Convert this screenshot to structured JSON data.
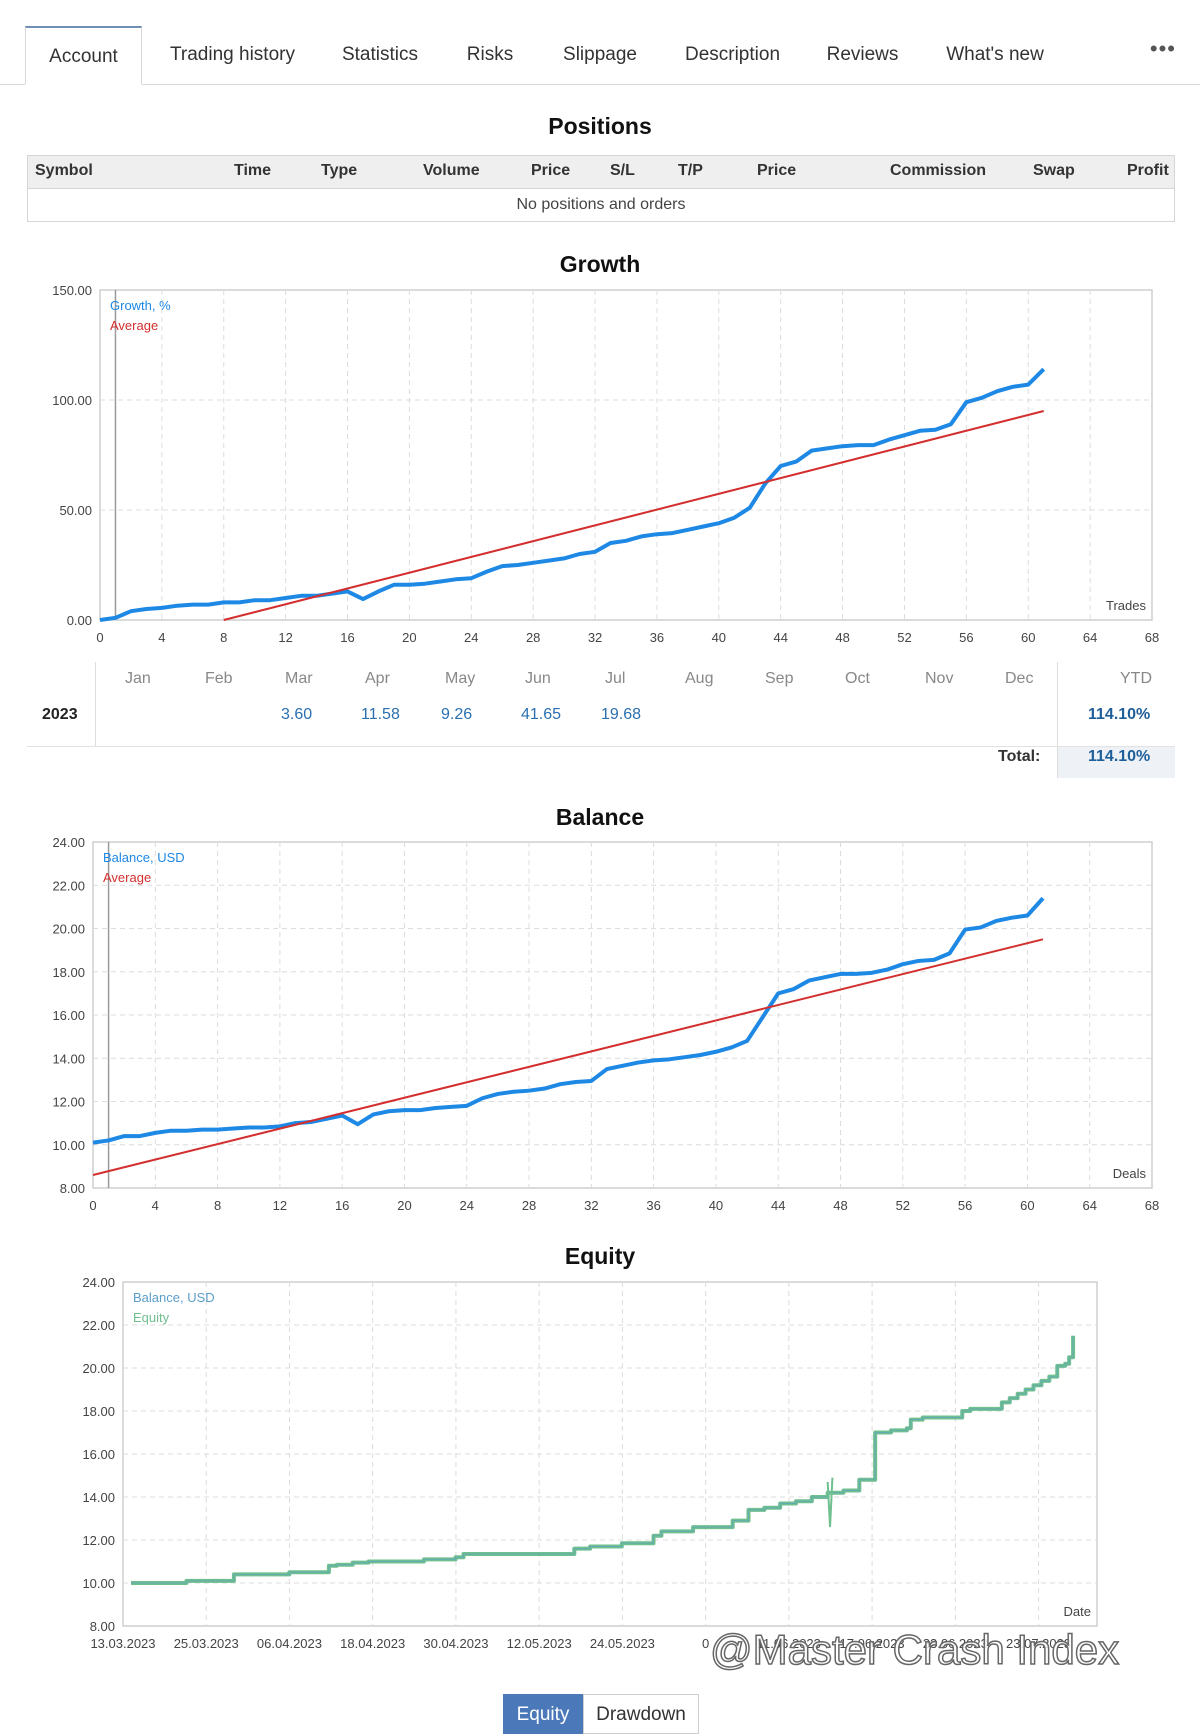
{
  "tabs": [
    "Account",
    "Trading history",
    "Statistics",
    "Risks",
    "Slippage",
    "Description",
    "Reviews",
    "What's new"
  ],
  "more_label": "•••",
  "positions": {
    "title": "Positions",
    "columns": [
      "Symbol",
      "Time",
      "Type",
      "Volume",
      "Price",
      "S/L",
      "T/P",
      "Price",
      "Commission",
      "Swap",
      "Profit"
    ],
    "empty_text": "No positions and orders"
  },
  "growth_table": {
    "months": [
      "Jan",
      "Feb",
      "Mar",
      "Apr",
      "May",
      "Jun",
      "Jul",
      "Aug",
      "Sep",
      "Oct",
      "Nov",
      "Dec"
    ],
    "ytd_label": "YTD",
    "year": "2023",
    "values": [
      "",
      "",
      "3.60",
      "11.58",
      "9.26",
      "41.65",
      "19.68",
      "",
      "",
      "",
      "",
      ""
    ],
    "ytd": "114.10%",
    "total_label": "Total:",
    "total": "114.10%"
  },
  "colors": {
    "growth": "#1e88e5",
    "average": "#d32f2f",
    "equity": "#6fbf8f",
    "balance_eq": "#5b9ec9",
    "accent": "#4a78b8"
  },
  "chart_data": [
    {
      "type": "line",
      "title": "Growth",
      "xlabel": "Trades",
      "ylabel": "",
      "xlim": [
        0,
        68
      ],
      "ylim": [
        0,
        150
      ],
      "xticks": [
        0,
        4,
        8,
        12,
        16,
        20,
        24,
        28,
        32,
        36,
        40,
        44,
        48,
        52,
        56,
        60,
        64,
        68
      ],
      "yticks": [
        "0.00",
        "50.00",
        "100.00",
        "150.00"
      ],
      "legend": "top-left",
      "grid": true,
      "series": [
        {
          "name": "Growth, %",
          "x": [
            0,
            1,
            2,
            3,
            4,
            5,
            6,
            7,
            8,
            9,
            10,
            11,
            12,
            13,
            14,
            15,
            16,
            17,
            18,
            19,
            20,
            21,
            22,
            23,
            24,
            25,
            26,
            27,
            28,
            29,
            30,
            31,
            32,
            33,
            34,
            35,
            36,
            37,
            38,
            39,
            40,
            41,
            42,
            43,
            44,
            45,
            46,
            47,
            48,
            49,
            50,
            51,
            52,
            53,
            54,
            55,
            56,
            57,
            58,
            59,
            60,
            61
          ],
          "values": [
            0,
            1,
            4,
            5,
            5.5,
            6.5,
            7,
            7,
            8,
            8,
            9,
            9,
            10,
            11,
            11,
            12,
            13,
            9.5,
            13,
            16,
            16,
            16.5,
            17.5,
            18.5,
            19,
            22,
            24.5,
            25,
            26,
            27,
            28,
            30,
            31,
            35,
            36,
            38,
            39,
            39.5,
            41,
            42.5,
            44,
            46.5,
            51,
            62,
            70,
            72,
            77,
            78,
            79,
            79.5,
            79.5,
            82,
            84,
            86,
            86.5,
            89,
            99,
            101,
            104,
            106,
            107,
            114
          ]
        },
        {
          "name": "Average",
          "x": [
            8,
            61
          ],
          "values": [
            0,
            95
          ]
        }
      ]
    },
    {
      "type": "line",
      "title": "Balance",
      "xlabel": "Deals",
      "ylabel": "",
      "xlim": [
        0,
        68
      ],
      "ylim": [
        8,
        24
      ],
      "xticks": [
        0,
        4,
        8,
        12,
        16,
        20,
        24,
        28,
        32,
        36,
        40,
        44,
        48,
        52,
        56,
        60,
        64,
        68
      ],
      "yticks": [
        "8.00",
        "10.00",
        "12.00",
        "14.00",
        "16.00",
        "18.00",
        "20.00",
        "22.00",
        "24.00"
      ],
      "legend": "top-left",
      "grid": true,
      "series": [
        {
          "name": "Balance, USD",
          "x": [
            0,
            1,
            2,
            3,
            4,
            5,
            6,
            7,
            8,
            9,
            10,
            11,
            12,
            13,
            14,
            15,
            16,
            17,
            18,
            19,
            20,
            21,
            22,
            23,
            24,
            25,
            26,
            27,
            28,
            29,
            30,
            31,
            32,
            33,
            34,
            35,
            36,
            37,
            38,
            39,
            40,
            41,
            42,
            43,
            44,
            45,
            46,
            47,
            48,
            49,
            50,
            51,
            52,
            53,
            54,
            55,
            56,
            57,
            58,
            59,
            60,
            61
          ],
          "values": [
            10.1,
            10.2,
            10.4,
            10.4,
            10.55,
            10.65,
            10.65,
            10.7,
            10.7,
            10.75,
            10.8,
            10.8,
            10.85,
            11.0,
            11.05,
            11.2,
            11.35,
            10.95,
            11.4,
            11.55,
            11.6,
            11.6,
            11.7,
            11.75,
            11.8,
            12.15,
            12.35,
            12.45,
            12.5,
            12.6,
            12.8,
            12.9,
            12.95,
            13.5,
            13.65,
            13.8,
            13.9,
            13.95,
            14.05,
            14.15,
            14.3,
            14.5,
            14.8,
            15.9,
            17.0,
            17.2,
            17.6,
            17.75,
            17.9,
            17.9,
            17.95,
            18.1,
            18.35,
            18.5,
            18.55,
            18.85,
            19.95,
            20.05,
            20.35,
            20.5,
            20.6,
            21.4
          ]
        },
        {
          "name": "Average",
          "x": [
            0,
            61
          ],
          "values": [
            8.6,
            19.5
          ]
        }
      ]
    },
    {
      "type": "line",
      "title": "Equity",
      "xlabel": "Date",
      "ylabel": "",
      "ylim": [
        8,
        24
      ],
      "xticks": [
        "13.03.2023",
        "25.03.2023",
        "06.04.2023",
        "18.04.2023",
        "30.04.2023",
        "12.05.2023",
        "24.05.2023",
        "0",
        "11.06.2023",
        "17.06.2023",
        "23.06.2023",
        "23.07.2023"
      ],
      "yticks": [
        "8.00",
        "10.00",
        "12.00",
        "14.00",
        "16.00",
        "18.00",
        "20.00",
        "22.00",
        "24.00"
      ],
      "legend": "top-left",
      "grid": true,
      "series": [
        {
          "name": "Balance, USD",
          "x": [
            0,
            6,
            7,
            12,
            13,
            19,
            20,
            25,
            26,
            28,
            30,
            36,
            37,
            41,
            42,
            56,
            58,
            62,
            66,
            67,
            71,
            76,
            78,
            80,
            82,
            84,
            86,
            88,
            90,
            92,
            94,
            96,
            98,
            98.5,
            100,
            105,
            106,
            110,
            111,
            112,
            113,
            114,
            115,
            116,
            117,
            118,
            118.5,
            119
          ],
          "values": [
            10.0,
            10.0,
            10.1,
            10.1,
            10.4,
            10.4,
            10.5,
            10.8,
            10.85,
            10.95,
            11.0,
            11.0,
            11.1,
            11.2,
            11.35,
            11.6,
            11.7,
            11.85,
            12.2,
            12.4,
            12.6,
            12.9,
            13.4,
            13.5,
            13.7,
            13.8,
            14.0,
            14.2,
            14.3,
            14.8,
            17.0,
            17.1,
            17.2,
            17.6,
            17.7,
            18.0,
            18.1,
            18.4,
            18.6,
            18.8,
            19.0,
            19.2,
            19.4,
            19.6,
            20.1,
            20.2,
            20.5,
            21.5
          ]
        },
        {
          "name": "Equity",
          "x": [
            88,
            88.3,
            88.6
          ],
          "values": [
            14.7,
            12.6,
            14.9
          ]
        }
      ]
    }
  ],
  "bottom_toggle": {
    "equity": "Equity",
    "drawdown": "Drawdown"
  },
  "watermark": "@Master Crash Index"
}
